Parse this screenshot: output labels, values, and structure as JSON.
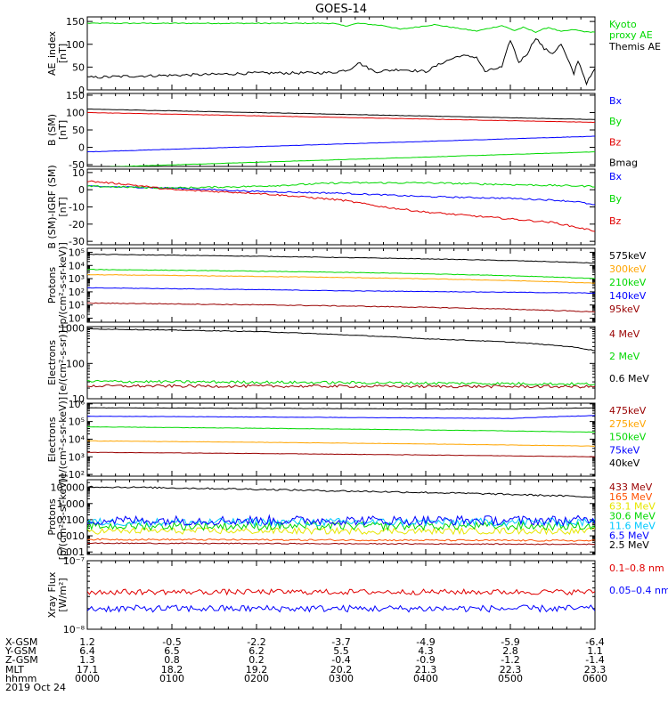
{
  "title": "GOES-14",
  "colors": {
    "black": "#000000",
    "green": "#00d800",
    "blue": "#0000ff",
    "red": "#e00000",
    "orange": "#ffa500",
    "darkred": "#990000",
    "cyan": "#00c8ff",
    "yellow": "#e6e600",
    "purple": "#a000a0",
    "orangered": "#ff5000"
  },
  "chart_data": [
    {
      "id": "ae",
      "type": "line",
      "ylabel": "AE_index\n[nT]",
      "yticks": [
        {
          "v": 0,
          "t": "0"
        },
        {
          "v": 50,
          "t": "50"
        },
        {
          "v": 100,
          "t": "100"
        },
        {
          "v": 150,
          "t": "150"
        }
      ],
      "ylim": [
        0,
        160
      ],
      "scale": "linear",
      "series": [
        {
          "name": "Kyoto\nproxy AE",
          "color": "green",
          "noise": 1,
          "x": [
            0,
            2.9,
            3.05,
            3.2,
            3.5,
            3.7,
            4.1,
            4.6,
            4.9,
            5.05,
            5.15,
            5.3,
            5.45,
            5.6,
            5.75,
            5.9,
            6
          ],
          "y": [
            146,
            146,
            140,
            146,
            141,
            133,
            143,
            129,
            141,
            130,
            137,
            127,
            137,
            128,
            132,
            127,
            127
          ]
        },
        {
          "name": "Themis AE",
          "color": "black",
          "noise": 3,
          "x": [
            0,
            0.5,
            1,
            1.5,
            2,
            2.5,
            2.9,
            3.1,
            3.2,
            3.4,
            3.7,
            4,
            4.2,
            4.4,
            4.6,
            4.7,
            4.9,
            5.0,
            5.1,
            5.2,
            5.3,
            5.4,
            5.5,
            5.6,
            5.75,
            5.8,
            5.9,
            6
          ],
          "y": [
            27,
            30,
            32,
            34,
            37,
            37,
            38,
            45,
            60,
            40,
            45,
            40,
            60,
            75,
            72,
            40,
            50,
            110,
            60,
            80,
            115,
            90,
            80,
            100,
            35,
            65,
            15,
            45
          ]
        }
      ]
    },
    {
      "id": "bsm",
      "type": "line",
      "ylabel": "B (SM)\n[nT]",
      "yticks": [
        {
          "v": -50,
          "t": "-50"
        },
        {
          "v": 0,
          "t": "0"
        },
        {
          "v": 50,
          "t": "50"
        },
        {
          "v": 100,
          "t": "100"
        },
        {
          "v": 150,
          "t": "150"
        }
      ],
      "ylim": [
        -55,
        155
      ],
      "scale": "linear",
      "series": [
        {
          "name": "Bx",
          "color": "blue",
          "noise": 0.5,
          "x": [
            0,
            6
          ],
          "y": [
            -13,
            32
          ]
        },
        {
          "name": "By",
          "color": "green",
          "noise": 0.5,
          "x": [
            0,
            6
          ],
          "y": [
            -58,
            -13
          ]
        },
        {
          "name": "Bz",
          "color": "red",
          "noise": 0.5,
          "x": [
            0,
            6
          ],
          "y": [
            100,
            72
          ]
        },
        {
          "name": "Bmag",
          "color": "black",
          "noise": 0.5,
          "x": [
            0,
            6
          ],
          "y": [
            110,
            80
          ]
        }
      ]
    },
    {
      "id": "bdiff",
      "type": "line",
      "ylabel": "B (SM)-IGRF (SM)\n[nT]",
      "yticks": [
        {
          "v": 10,
          "t": "10"
        },
        {
          "v": 0,
          "t": "0"
        },
        {
          "v": -10,
          "t": "-10"
        },
        {
          "v": -20,
          "t": "-20"
        },
        {
          "v": -30,
          "t": "-30"
        }
      ],
      "ylim": [
        -32,
        12
      ],
      "scale": "linear",
      "series": [
        {
          "name": "Bx",
          "color": "blue",
          "noise": 0.4,
          "x": [
            0,
            1,
            2,
            3,
            3.5,
            4,
            4.5,
            5,
            5.5,
            5.8,
            6
          ],
          "y": [
            2,
            1,
            -1,
            -2,
            -3,
            -4,
            -4.5,
            -5,
            -6,
            -7,
            -9
          ]
        },
        {
          "name": "By",
          "color": "green",
          "noise": 0.5,
          "x": [
            0,
            1,
            2,
            3,
            4,
            5,
            6
          ],
          "y": [
            2,
            1,
            2,
            4,
            4,
            3,
            2
          ]
        },
        {
          "name": "Bz",
          "color": "red",
          "noise": 0.5,
          "x": [
            0,
            0.5,
            1,
            1.5,
            2,
            2.5,
            3,
            3.5,
            4,
            4.5,
            5,
            5.5,
            6
          ],
          "y": [
            5,
            3,
            0,
            -1,
            -2,
            -4,
            -6,
            -10,
            -13,
            -15,
            -17,
            -19,
            -24
          ]
        }
      ]
    },
    {
      "id": "protons",
      "type": "line",
      "ylabel": "Protons\n[p/(cm²-s-sr-keV)]",
      "yticks": [
        {
          "v": 1,
          "t": "10⁰"
        },
        {
          "v": 10,
          "t": "10¹"
        },
        {
          "v": 100,
          "t": "10²"
        },
        {
          "v": 1000,
          "t": "10³"
        },
        {
          "v": 10000,
          "t": "10⁴"
        },
        {
          "v": 100000,
          "t": "10⁵"
        }
      ],
      "ylim": [
        0.5,
        200000
      ],
      "scale": "log",
      "series": [
        {
          "name": "575keV",
          "color": "black",
          "noise": 0.02,
          "x": [
            0,
            3,
            6
          ],
          "y": [
            70000,
            40000,
            15000
          ]
        },
        {
          "name": "300keV",
          "color": "orange",
          "noise": 0.02,
          "x": [
            0,
            6
          ],
          "y": [
            2000,
            450
          ]
        },
        {
          "name": "210keV",
          "color": "green",
          "noise": 0.02,
          "x": [
            0,
            6
          ],
          "y": [
            5000,
            1000
          ]
        },
        {
          "name": "140keV",
          "color": "blue",
          "noise": 0.02,
          "x": [
            0,
            3,
            6
          ],
          "y": [
            200,
            120,
            80
          ]
        },
        {
          "name": "95keV",
          "color": "darkred",
          "noise": 0.03,
          "x": [
            0,
            6
          ],
          "y": [
            14,
            3
          ]
        }
      ]
    },
    {
      "id": "electrons1",
      "type": "line",
      "ylabel": "Electrons\n[e/(cm²-s-sr)]",
      "yticks": [
        {
          "v": 10,
          "t": "10"
        },
        {
          "v": 100,
          "t": "100"
        },
        {
          "v": 1000,
          "t": "1000"
        }
      ],
      "ylim": [
        10,
        1100
      ],
      "scale": "log",
      "series": [
        {
          "name": "4 MeV",
          "color": "darkred",
          "noise": 0.04,
          "x": [
            0,
            6
          ],
          "y": [
            23,
            22
          ]
        },
        {
          "name": "2 MeV",
          "color": "green",
          "noise": 0.04,
          "x": [
            0,
            6
          ],
          "y": [
            31,
            26
          ]
        },
        {
          "name": "0.6 MeV",
          "color": "black",
          "noise": 0.01,
          "x": [
            0,
            2,
            3,
            4,
            5,
            5.7,
            6
          ],
          "y": [
            950,
            800,
            650,
            500,
            400,
            300,
            230
          ]
        }
      ]
    },
    {
      "id": "electrons2",
      "type": "line",
      "ylabel": "Electrons\n[e/(cm²-s-sr-keV)]",
      "yticks": [
        {
          "v": 100,
          "t": "10²"
        },
        {
          "v": 1000,
          "t": "10³"
        },
        {
          "v": 10000,
          "t": "10⁴"
        },
        {
          "v": 100000,
          "t": "10⁵"
        },
        {
          "v": 1000000,
          "t": "10⁶"
        }
      ],
      "ylim": [
        80,
        1100000
      ],
      "scale": "log",
      "series": [
        {
          "name": "475keV",
          "color": "darkred",
          "noise": 0.01,
          "x": [
            0,
            6
          ],
          "y": [
            1800,
            1000
          ]
        },
        {
          "name": "275keV",
          "color": "orange",
          "noise": 0.01,
          "x": [
            0,
            6
          ],
          "y": [
            8000,
            4000
          ]
        },
        {
          "name": "150keV",
          "color": "green",
          "noise": 0.01,
          "x": [
            0,
            6
          ],
          "y": [
            50000,
            25000
          ]
        },
        {
          "name": "75keV",
          "color": "blue",
          "noise": 0.01,
          "x": [
            0,
            5,
            6
          ],
          "y": [
            200000,
            150000,
            220000
          ]
        },
        {
          "name": "40keV",
          "color": "black",
          "noise": 0.01,
          "x": [
            0,
            5,
            6
          ],
          "y": [
            600000,
            500000,
            600000
          ]
        }
      ]
    },
    {
      "id": "protons2",
      "type": "line",
      "ylabel": "Protons\n[p/(cm²-s-sr-keV)]",
      "yticks": [
        {
          "v": 0.001,
          "t": "0.001"
        },
        {
          "v": 0.01,
          "t": "0.010"
        },
        {
          "v": 0.1,
          "t": "0.100"
        },
        {
          "v": 1,
          "t": "1.000"
        },
        {
          "v": 10,
          "t": "10.000"
        }
      ],
      "ylim": [
        0.0007,
        30
      ],
      "scale": "log",
      "series": [
        {
          "name": "433 MeV",
          "color": "darkred",
          "noise": 0.03,
          "x": [
            0,
            6
          ],
          "y": [
            0.0035,
            0.003
          ]
        },
        {
          "name": "165 MeV",
          "color": "orangered",
          "noise": 0.05,
          "x": [
            0,
            6
          ],
          "y": [
            0.006,
            0.005
          ]
        },
        {
          "name": "63.1 MeV",
          "color": "yellow",
          "noise": 0.2,
          "x": [
            0,
            6
          ],
          "y": [
            0.02,
            0.02
          ]
        },
        {
          "name": "30.6 MeV",
          "color": "green",
          "noise": 0.25,
          "x": [
            0,
            6
          ],
          "y": [
            0.04,
            0.04
          ]
        },
        {
          "name": "11.6 MeV",
          "color": "cyan",
          "noise": 0.25,
          "x": [
            0,
            6
          ],
          "y": [
            0.07,
            0.07
          ]
        },
        {
          "name": "6.5 MeV",
          "color": "blue",
          "noise": 0.3,
          "x": [
            0,
            6
          ],
          "y": [
            0.09,
            0.09
          ]
        },
        {
          "name": "2.5 MeV",
          "color": "black",
          "noise": 0.05,
          "x": [
            0,
            3,
            6
          ],
          "y": [
            11,
            6,
            2.5
          ]
        }
      ]
    },
    {
      "id": "xray",
      "type": "line",
      "ylabel": "Xray Flux\n[W/m²]",
      "yticks": [
        {
          "v": 1e-08,
          "t": "10⁻⁸"
        },
        {
          "v": 1e-07,
          "t": "10⁻⁷"
        }
      ],
      "ylim": [
        1e-08,
        1e-07
      ],
      "scale": "log",
      "series": [
        {
          "name": "0.1–0.8 nm",
          "color": "red",
          "noise": 0.04,
          "x": [
            0,
            6
          ],
          "y": [
            3.5e-08,
            3.5e-08
          ]
        },
        {
          "name": "0.05–0.4 nm",
          "color": "blue",
          "noise": 0.05,
          "x": [
            0,
            6
          ],
          "y": [
            2e-08,
            2e-08
          ]
        }
      ]
    }
  ],
  "footer": {
    "labels": [
      "X-GSM",
      "Y-GSM",
      "Z-GSM",
      "MLT",
      "hhmm",
      "2019 Oct 24"
    ],
    "columns": [
      [
        "1.2",
        "6.4",
        "1.3",
        "17.1",
        "0000"
      ],
      [
        "-0.5",
        "6.5",
        "0.8",
        "18.2",
        "0100"
      ],
      [
        "-2.2",
        "6.2",
        "0.2",
        "19.2",
        "0200"
      ],
      [
        "-3.7",
        "5.5",
        "-0.4",
        "20.2",
        "0300"
      ],
      [
        "-4.9",
        "4.3",
        "-0.9",
        "21.3",
        "0400"
      ],
      [
        "-5.9",
        "2.8",
        "-1.2",
        "22.3",
        "0500"
      ],
      [
        "-6.4",
        "1.1",
        "-1.4",
        "23.3",
        "0600"
      ]
    ]
  }
}
